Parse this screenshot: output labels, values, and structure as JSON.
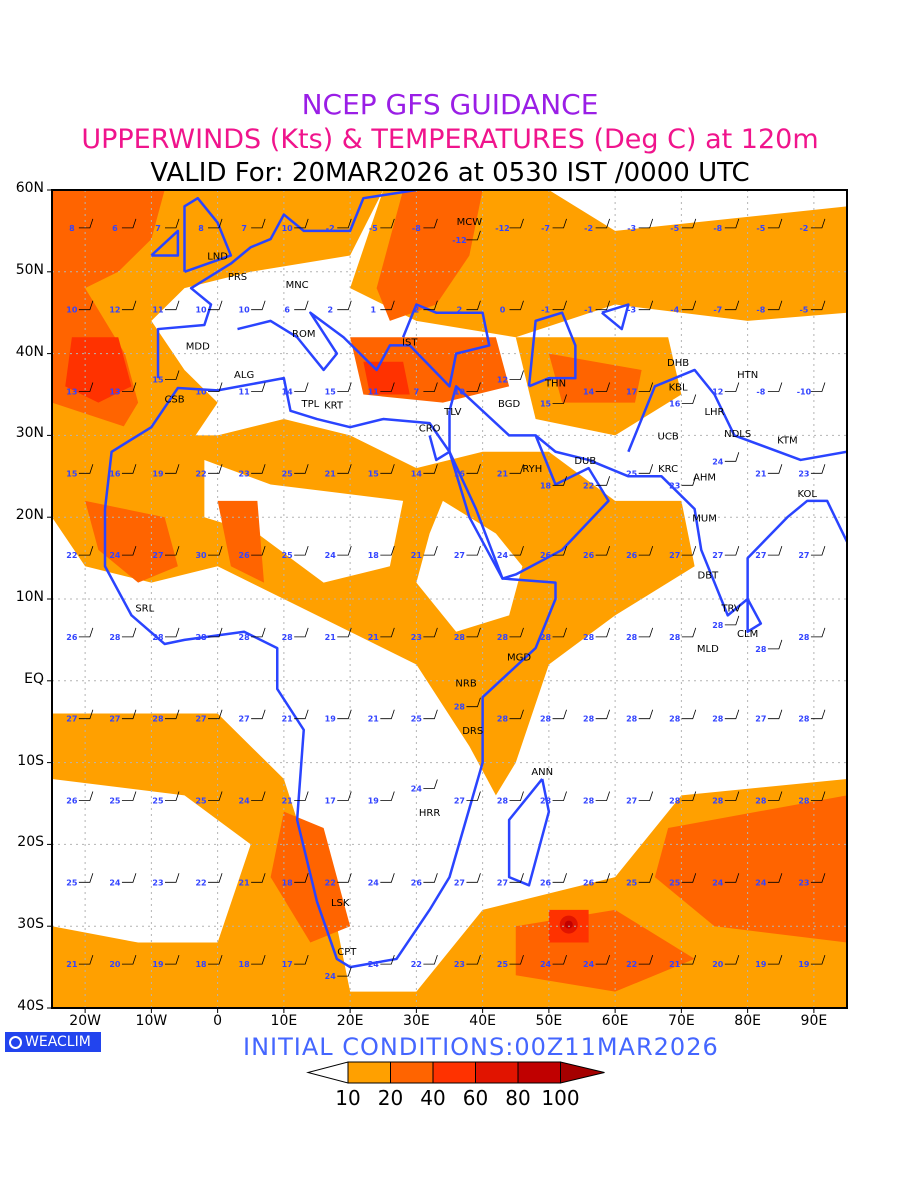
{
  "title": {
    "line1": "NCEP GFS GUIDANCE",
    "line2": "UPPERWINDS (Kts) & TEMPERATURES (Deg C) at 120m",
    "line3": "VALID For: 20MAR2026 at 0530 IST /0000 UTC"
  },
  "map": {
    "lon_range": [
      -25,
      95
    ],
    "lat_range": [
      -40,
      60
    ],
    "lat_ticks": [
      {
        "v": 60,
        "label": "60N"
      },
      {
        "v": 50,
        "label": "50N"
      },
      {
        "v": 40,
        "label": "40N"
      },
      {
        "v": 30,
        "label": "30N"
      },
      {
        "v": 20,
        "label": "20N"
      },
      {
        "v": 10,
        "label": "10N"
      },
      {
        "v": 0,
        "label": "EQ"
      },
      {
        "v": -10,
        "label": "10S"
      },
      {
        "v": -20,
        "label": "20S"
      },
      {
        "v": -30,
        "label": "30S"
      },
      {
        "v": -40,
        "label": "40S"
      }
    ],
    "lon_ticks": [
      {
        "v": -20,
        "label": "20W"
      },
      {
        "v": -10,
        "label": "10W"
      },
      {
        "v": 0,
        "label": "0"
      },
      {
        "v": 10,
        "label": "10E"
      },
      {
        "v": 20,
        "label": "20E"
      },
      {
        "v": 30,
        "label": "30E"
      },
      {
        "v": 40,
        "label": "40E"
      },
      {
        "v": 50,
        "label": "50E"
      },
      {
        "v": 60,
        "label": "60E"
      },
      {
        "v": 70,
        "label": "70E"
      },
      {
        "v": 80,
        "label": "80E"
      },
      {
        "v": 90,
        "label": "90E"
      }
    ],
    "stations": [
      {
        "code": "LND",
        "lon": 0,
        "lat": 51.5
      },
      {
        "code": "PRS",
        "lon": 3,
        "lat": 49
      },
      {
        "code": "MNC",
        "lon": 12,
        "lat": 48
      },
      {
        "code": "MCW",
        "lon": 38,
        "lat": 55.7
      },
      {
        "code": "ROM",
        "lon": 13,
        "lat": 42
      },
      {
        "code": "IST",
        "lon": 29,
        "lat": 41
      },
      {
        "code": "MDD",
        "lon": -3,
        "lat": 40.5
      },
      {
        "code": "ALG",
        "lon": 4,
        "lat": 37
      },
      {
        "code": "CSB",
        "lon": -6.5,
        "lat": 34
      },
      {
        "code": "TPL",
        "lon": 14,
        "lat": 33.5
      },
      {
        "code": "KRT",
        "lon": 17.5,
        "lat": 33.3
      },
      {
        "code": "CRO",
        "lon": 32,
        "lat": 30.5
      },
      {
        "code": "TLV",
        "lon": 35.5,
        "lat": 32.5
      },
      {
        "code": "BGD",
        "lon": 44,
        "lat": 33.5
      },
      {
        "code": "THN",
        "lon": 51,
        "lat": 36
      },
      {
        "code": "DHB",
        "lon": 69.5,
        "lat": 38.5
      },
      {
        "code": "KBL",
        "lon": 69.5,
        "lat": 35.5
      },
      {
        "code": "HTN",
        "lon": 80,
        "lat": 37
      },
      {
        "code": "LHR",
        "lon": 75,
        "lat": 32.5
      },
      {
        "code": "NDLS",
        "lon": 78.5,
        "lat": 29.8
      },
      {
        "code": "KTM",
        "lon": 86,
        "lat": 29
      },
      {
        "code": "UCB",
        "lon": 68,
        "lat": 29.5
      },
      {
        "code": "KRC",
        "lon": 68,
        "lat": 25.5
      },
      {
        "code": "AHM",
        "lon": 73.5,
        "lat": 24.5
      },
      {
        "code": "DUB",
        "lon": 55.5,
        "lat": 26.5
      },
      {
        "code": "RYH",
        "lon": 47.5,
        "lat": 25.5
      },
      {
        "code": "KOL",
        "lon": 89,
        "lat": 22.5
      },
      {
        "code": "MUM",
        "lon": 73.5,
        "lat": 19.5
      },
      {
        "code": "DBT",
        "lon": 74,
        "lat": 12.5
      },
      {
        "code": "TRV",
        "lon": 77.5,
        "lat": 8.5
      },
      {
        "code": "CLM",
        "lon": 80,
        "lat": 6.8
      },
      {
        "code": "MLD",
        "lon": 74,
        "lat": 3.5
      },
      {
        "code": "SRL",
        "lon": -11,
        "lat": 8.5
      },
      {
        "code": "MGD",
        "lon": 45.5,
        "lat": 2.5
      },
      {
        "code": "NRB",
        "lon": 37.5,
        "lat": -0.7
      },
      {
        "code": "DRS",
        "lon": 38.5,
        "lat": -6.5
      },
      {
        "code": "ANN",
        "lon": 49,
        "lat": -11.5
      },
      {
        "code": "HRR",
        "lon": 32,
        "lat": -16.5
      },
      {
        "code": "LSK",
        "lon": 18.5,
        "lat": -27.5
      },
      {
        "code": "CPT",
        "lon": 19.5,
        "lat": -33.5
      }
    ],
    "temperature_rows": [
      {
        "lat": 55,
        "values": [
          8,
          6,
          7,
          8,
          7,
          10,
          -2,
          -5,
          -8,
          -12,
          -12,
          -7,
          -2,
          -3,
          -5,
          -8,
          -5,
          -2
        ]
      },
      {
        "lat": 45,
        "values": [
          10,
          12,
          11,
          10,
          10,
          6,
          2,
          1,
          2,
          2,
          0,
          -1,
          -1,
          -3,
          -4,
          -7,
          -8,
          -5
        ]
      },
      {
        "lat": 35,
        "values": [
          13,
          13,
          15,
          10,
          11,
          14,
          15,
          11,
          7,
          10,
          12,
          15,
          14,
          17,
          16,
          12,
          -8,
          -10
        ]
      },
      {
        "lat": 25,
        "values": [
          15,
          16,
          19,
          22,
          23,
          25,
          21,
          15,
          14,
          16,
          21,
          18,
          22,
          25,
          23,
          24,
          21,
          23
        ]
      },
      {
        "lat": 15,
        "values": [
          22,
          24,
          27,
          30,
          26,
          25,
          24,
          18,
          21,
          27,
          24,
          26,
          26,
          26,
          27,
          27,
          27,
          27
        ]
      },
      {
        "lat": 5,
        "values": [
          26,
          28,
          28,
          28,
          28,
          28,
          21,
          21,
          23,
          28,
          28,
          28,
          28,
          28,
          28,
          28,
          28,
          28
        ]
      },
      {
        "lat": -5,
        "values": [
          27,
          27,
          28,
          27,
          27,
          21,
          19,
          21,
          25,
          28,
          28,
          28,
          28,
          28,
          28,
          28,
          27,
          28
        ]
      },
      {
        "lat": -15,
        "values": [
          26,
          25,
          25,
          25,
          24,
          21,
          17,
          19,
          24,
          27,
          28,
          28,
          28,
          27,
          28,
          28,
          28,
          28
        ]
      },
      {
        "lat": -25,
        "values": [
          25,
          24,
          23,
          22,
          21,
          18,
          22,
          24,
          26,
          27,
          27,
          26,
          26,
          25,
          25,
          24,
          24,
          23
        ]
      },
      {
        "lat": -35,
        "values": [
          21,
          20,
          19,
          18,
          18,
          17,
          24,
          24,
          22,
          23,
          25,
          24,
          24,
          22,
          21,
          20,
          19,
          19
        ]
      }
    ]
  },
  "logo": "WEACLIM",
  "initial_conditions": "INITIAL  CONDITIONS:00Z11MAR2026",
  "colorbar": {
    "colors": [
      "#ffffff",
      "#ffa000",
      "#ff6400",
      "#ff3200",
      "#e11400",
      "#c00000",
      "#a50000"
    ],
    "labels": [
      "10",
      "20",
      "40",
      "60",
      "80",
      "100"
    ]
  },
  "colors": {
    "coast": "#2a44ff",
    "temp_text": "#3344ff",
    "grid": "#b4b4b4"
  }
}
